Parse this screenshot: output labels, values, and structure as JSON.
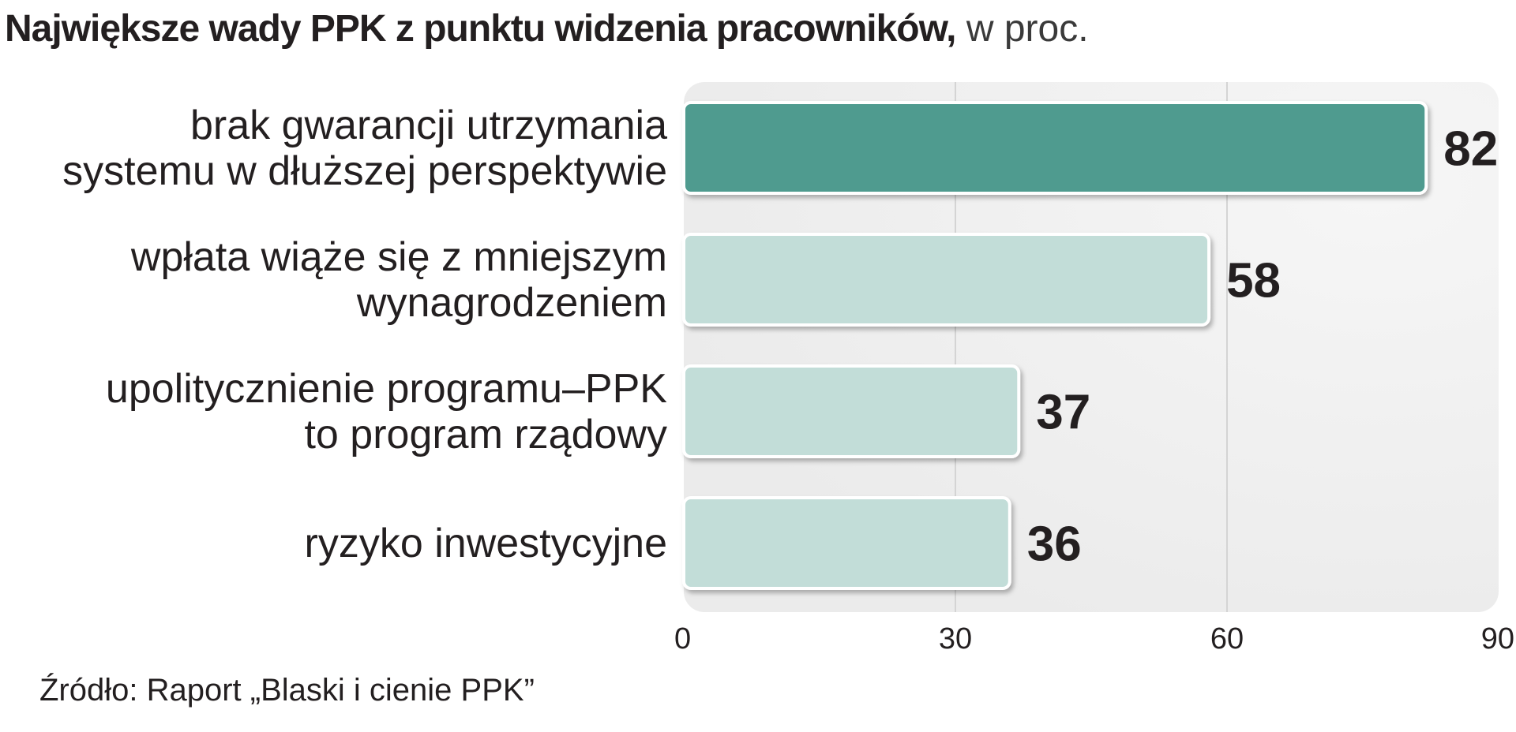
{
  "title": {
    "main": "Największe wady PPK z punktu widzenia pracowników,",
    "unit": " w proc."
  },
  "source": "Źródło: Raport „Blaski i cienie PPK”",
  "colors": {
    "highlight_bar": "#4f9b8f",
    "bar": "#c2ddd8",
    "plot_background": "#ebebeb",
    "gridline": "#d4d4d4",
    "text": "#231f20"
  },
  "chart_data": {
    "type": "bar",
    "orientation": "horizontal",
    "title": "Największe wady PPK z punktu widzenia pracowników, w proc.",
    "categories": [
      [
        "brak gwarancji utrzymania",
        "systemu w dłuższej perspektywie"
      ],
      [
        "wpłata wiąże się z mniejszym",
        "wynagrodzeniem"
      ],
      [
        "upolitycznienie programu–PPK",
        "to program rządowy"
      ],
      [
        "ryzyko inwestycyjne"
      ]
    ],
    "values": [
      82,
      58,
      37,
      36
    ],
    "value_labels": [
      "82",
      "58",
      "37",
      "36"
    ],
    "highlight_index": 0,
    "xlim": [
      0,
      90
    ],
    "xticks": [
      0,
      30,
      60,
      90
    ],
    "xtick_labels": [
      "0",
      "30",
      "60",
      "90"
    ],
    "grid": true,
    "xlabel": "",
    "ylabel": ""
  }
}
